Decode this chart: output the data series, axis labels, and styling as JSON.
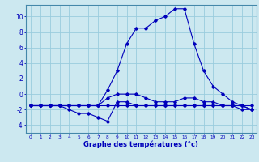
{
  "hours": [
    0,
    1,
    2,
    3,
    4,
    5,
    6,
    7,
    8,
    9,
    10,
    11,
    12,
    13,
    14,
    15,
    16,
    17,
    18,
    19,
    20,
    21,
    22,
    23
  ],
  "curve1": [
    -1.5,
    -1.5,
    -1.5,
    -1.5,
    -1.5,
    -1.5,
    -1.5,
    -1.5,
    -1.5,
    -1.5,
    -1.5,
    -1.5,
    -1.5,
    -1.5,
    -1.5,
    -1.5,
    -1.5,
    -1.5,
    -1.5,
    -1.5,
    -1.5,
    -1.5,
    -1.5,
    -1.5
  ],
  "curve2": [
    -1.5,
    -1.5,
    -1.5,
    -1.5,
    -2,
    -2.5,
    -2.5,
    -3,
    -3.5,
    -1,
    -1,
    -1.5,
    -1.5,
    -1.5,
    -1.5,
    -1.5,
    -1.5,
    -1.5,
    -1.5,
    -1.5,
    -1.5,
    -1.5,
    -1.5,
    -2
  ],
  "curve3": [
    -1.5,
    -1.5,
    -1.5,
    -1.5,
    -1.5,
    -1.5,
    -1.5,
    -1.5,
    -0.5,
    0,
    0,
    0,
    -0.5,
    -1,
    -1,
    -1,
    -0.5,
    -0.5,
    -1,
    -1,
    -1.5,
    -1.5,
    -2,
    -2
  ],
  "curve4": [
    -1.5,
    -1.5,
    -1.5,
    -1.5,
    -1.5,
    -1.5,
    -1.5,
    -1.5,
    0.5,
    3,
    6.5,
    8.5,
    8.5,
    9.5,
    10,
    11,
    11,
    6.5,
    3,
    1,
    0,
    -1,
    -1.5,
    -2
  ],
  "bg_color": "#cce8f0",
  "grid_color": "#99ccdd",
  "line_color": "#0000bb",
  "xlabel": "Graphe des températures (°c)",
  "ylim": [
    -5,
    11.5
  ],
  "xlim": [
    -0.5,
    23.5
  ],
  "yticks": [
    -4,
    -2,
    0,
    2,
    4,
    6,
    8,
    10
  ],
  "xticks": [
    0,
    1,
    2,
    3,
    4,
    5,
    6,
    7,
    8,
    9,
    10,
    11,
    12,
    13,
    14,
    15,
    16,
    17,
    18,
    19,
    20,
    21,
    22,
    23
  ]
}
